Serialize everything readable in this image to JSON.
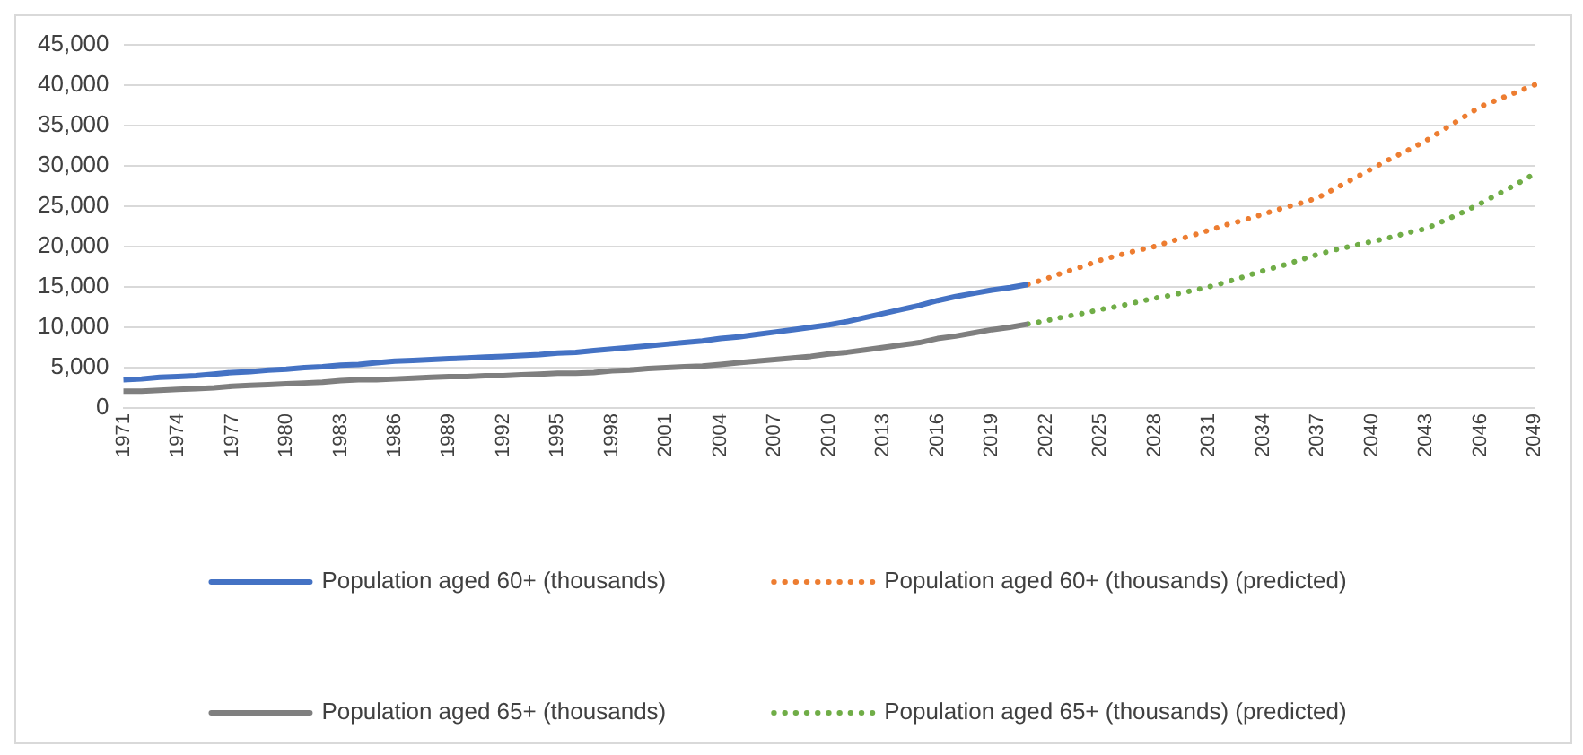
{
  "chart_data": {
    "type": "line",
    "categories": [
      "1971",
      null,
      null,
      "1974",
      null,
      null,
      "1977",
      null,
      null,
      "1980",
      null,
      null,
      "1983",
      null,
      null,
      "1986",
      null,
      null,
      "1989",
      null,
      null,
      "1992",
      null,
      null,
      "1995",
      null,
      null,
      "1998",
      null,
      null,
      "2001",
      null,
      null,
      "2004",
      null,
      null,
      "2007",
      null,
      null,
      "2010",
      null,
      null,
      "2013",
      null,
      null,
      "2016",
      null,
      null,
      "2019",
      null,
      null,
      "2022",
      null,
      null,
      "2025",
      null,
      null,
      "2028",
      null,
      null,
      "2031",
      null,
      null,
      "2034",
      null,
      null,
      "2037",
      null,
      null,
      "2040",
      null,
      null,
      "2043",
      null,
      null,
      "2046",
      null,
      null,
      "2049"
    ],
    "series": [
      {
        "name": "Population aged 60+ (thousands)",
        "color": "#4472c4",
        "line_style": "solid",
        "values": [
          3500,
          3600,
          3800,
          3900,
          4000,
          4200,
          4400,
          4500,
          4700,
          4800,
          5000,
          5100,
          5300,
          5400,
          5600,
          5800,
          5900,
          6000,
          6100,
          6200,
          6300,
          6400,
          6500,
          6600,
          6800,
          6900,
          7100,
          7300,
          7500,
          7700,
          7900,
          8100,
          8300,
          8600,
          8800,
          9100,
          9400,
          9700,
          10000,
          10300,
          10700,
          11200,
          11700,
          12200,
          12700,
          13300,
          13800,
          14200,
          14600,
          14900,
          15300,
          null,
          null,
          null,
          null,
          null,
          null,
          null,
          null,
          null,
          null,
          null,
          null,
          null,
          null,
          null,
          null,
          null,
          null,
          null,
          null,
          null,
          null,
          null,
          null,
          null,
          null,
          null,
          null
        ]
      },
      {
        "name": "Population aged 60+ (thousands) (predicted)",
        "color": "#ed7d31",
        "line_style": "dotted",
        "values": [
          null,
          null,
          null,
          null,
          null,
          null,
          null,
          null,
          null,
          null,
          null,
          null,
          null,
          null,
          null,
          null,
          null,
          null,
          null,
          null,
          null,
          null,
          null,
          null,
          null,
          null,
          null,
          null,
          null,
          null,
          null,
          null,
          null,
          null,
          null,
          null,
          null,
          null,
          null,
          null,
          null,
          null,
          null,
          null,
          null,
          null,
          null,
          null,
          null,
          null,
          15300,
          16000,
          16800,
          17500,
          18300,
          18900,
          19500,
          20000,
          20700,
          21300,
          22000,
          22700,
          23300,
          24000,
          24700,
          25300,
          26000,
          27200,
          28400,
          29600,
          30800,
          31900,
          33100,
          34500,
          35900,
          37300,
          38200,
          39100,
          40000
        ]
      },
      {
        "name": "Population aged 65+ (thousands)",
        "color": "#7f7f7f",
        "line_style": "solid",
        "values": [
          2100,
          2100,
          2200,
          2300,
          2400,
          2500,
          2700,
          2800,
          2900,
          3000,
          3100,
          3200,
          3400,
          3500,
          3500,
          3600,
          3700,
          3800,
          3900,
          3900,
          4000,
          4000,
          4100,
          4200,
          4300,
          4300,
          4400,
          4600,
          4700,
          4900,
          5000,
          5100,
          5200,
          5400,
          5600,
          5800,
          6000,
          6200,
          6400,
          6700,
          6900,
          7200,
          7500,
          7800,
          8100,
          8600,
          8900,
          9300,
          9700,
          10000,
          10400,
          null,
          null,
          null,
          null,
          null,
          null,
          null,
          null,
          null,
          null,
          null,
          null,
          null,
          null,
          null,
          null,
          null,
          null,
          null,
          null,
          null,
          null,
          null,
          null,
          null,
          null,
          null,
          null
        ]
      },
      {
        "name": "Population aged 65+ (thousands) (predicted)",
        "color": "#70ad47",
        "line_style": "dotted",
        "values": [
          null,
          null,
          null,
          null,
          null,
          null,
          null,
          null,
          null,
          null,
          null,
          null,
          null,
          null,
          null,
          null,
          null,
          null,
          null,
          null,
          null,
          null,
          null,
          null,
          null,
          null,
          null,
          null,
          null,
          null,
          null,
          null,
          null,
          null,
          null,
          null,
          null,
          null,
          null,
          null,
          null,
          null,
          null,
          null,
          null,
          null,
          null,
          null,
          null,
          null,
          10400,
          10800,
          11300,
          11700,
          12200,
          12600,
          13100,
          13600,
          14000,
          14500,
          15000,
          15600,
          16300,
          17000,
          17600,
          18300,
          19000,
          19600,
          20100,
          20600,
          21100,
          21700,
          22200,
          23200,
          24200,
          25300,
          26500,
          27700,
          29000
        ]
      }
    ],
    "ylim": [
      0,
      45000
    ],
    "yticks": [
      0,
      {
        "value": 5000,
        "label": "5,000"
      },
      {
        "value": 10000,
        "label": "10,000"
      },
      {
        "value": 15000,
        "label": "15,000"
      },
      {
        "value": 20000,
        "label": "20,000"
      },
      {
        "value": 25000,
        "label": "25,000"
      },
      {
        "value": 30000,
        "label": "30,000"
      },
      {
        "value": 35000,
        "label": "35,000"
      },
      {
        "value": 40000,
        "label": "40,000"
      },
      {
        "value": 45000,
        "label": "45,000"
      }
    ],
    "grid": "y",
    "legend": "bottom",
    "marker": "none"
  }
}
